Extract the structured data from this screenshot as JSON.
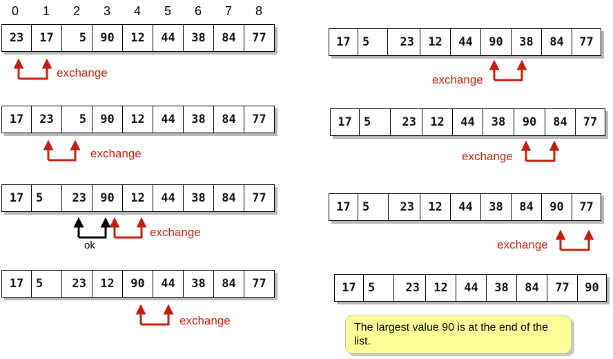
{
  "indices": [
    "0",
    "1",
    "2",
    "3",
    "4",
    "5",
    "6",
    "7",
    "8"
  ],
  "left_rows": [
    [
      "23",
      "17",
      "5",
      "90",
      "12",
      "44",
      "38",
      "84",
      "77"
    ],
    [
      "17",
      "23",
      "5",
      "90",
      "12",
      "44",
      "38",
      "84",
      "77"
    ],
    [
      "17",
      "5",
      "23",
      "90",
      "12",
      "44",
      "38",
      "84",
      "77"
    ],
    [
      "17",
      "5",
      "23",
      "12",
      "90",
      "44",
      "38",
      "84",
      "77"
    ]
  ],
  "right_rows": [
    [
      "17",
      "5",
      "23",
      "12",
      "44",
      "90",
      "38",
      "84",
      "77"
    ],
    [
      "17",
      "5",
      "23",
      "12",
      "44",
      "38",
      "90",
      "84",
      "77"
    ],
    [
      "17",
      "5",
      "23",
      "12",
      "44",
      "38",
      "84",
      "90",
      "77"
    ],
    [
      "17",
      "5",
      "23",
      "12",
      "44",
      "38",
      "84",
      "77",
      "90"
    ]
  ],
  "labels": {
    "exchange": "exchange",
    "ok": "ok"
  },
  "colors": {
    "exchange_arrow": "#c0200d",
    "ok_arrow": "#000000"
  },
  "note": "The largest value 90 is at the end of the list."
}
